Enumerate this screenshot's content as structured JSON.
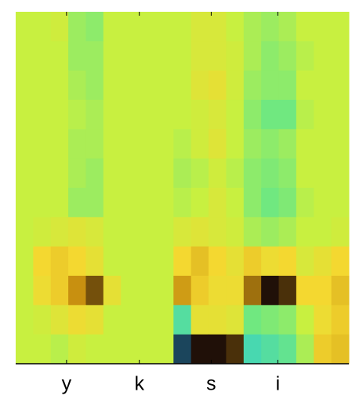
{
  "chart_data": {
    "type": "heatmap",
    "xlim": [
      0,
      19
    ],
    "xticks": [
      {
        "value": 2.9,
        "label": "y"
      },
      {
        "value": 7.05,
        "label": "k"
      },
      {
        "value": 11.15,
        "label": "s"
      },
      {
        "value": 14.95,
        "label": "i"
      }
    ],
    "colorscale": [
      [
        -1,
        "#0c1440"
      ],
      [
        -0.6,
        "#48d8b0"
      ],
      [
        -0.3,
        "#70e880"
      ],
      [
        0,
        "#c8f040"
      ],
      [
        0.3,
        "#f4d830"
      ],
      [
        0.6,
        "#c89010"
      ],
      [
        1,
        "#201008"
      ]
    ],
    "z": [
      [
        0,
        0,
        0.05,
        -0.15,
        -0.2,
        0,
        0,
        0,
        0,
        0,
        0.1,
        0.1,
        0,
        -0.1,
        -0.15,
        -0.1,
        0,
        0,
        0
      ],
      [
        0,
        0,
        0,
        -0.15,
        -0.15,
        0,
        0,
        0,
        0,
        0,
        0.1,
        0.1,
        0.05,
        -0.1,
        -0.2,
        -0.15,
        -0.05,
        0,
        0
      ],
      [
        0,
        0,
        0,
        -0.1,
        -0.15,
        0,
        0,
        0,
        0,
        0,
        0.15,
        0.2,
        0.05,
        -0.15,
        -0.2,
        -0.2,
        0,
        0,
        0
      ],
      [
        0,
        0,
        0,
        -0.05,
        -0.1,
        0,
        0,
        0,
        0,
        0,
        0.05,
        0.1,
        0,
        -0.2,
        -0.3,
        -0.3,
        -0.05,
        0,
        0
      ],
      [
        0,
        0,
        0,
        -0.1,
        -0.1,
        0,
        0,
        0,
        0,
        -0.05,
        0.05,
        0.15,
        0,
        -0.15,
        -0.2,
        -0.15,
        0,
        0,
        0
      ],
      [
        0,
        0,
        0,
        -0.1,
        -0.15,
        0,
        0,
        0,
        0,
        -0.1,
        -0.05,
        0.05,
        -0.05,
        -0.2,
        -0.25,
        -0.2,
        0,
        0,
        0
      ],
      [
        0,
        0,
        0,
        -0.15,
        -0.15,
        0,
        0,
        0,
        0,
        -0.05,
        0,
        0.1,
        0,
        -0.2,
        -0.3,
        -0.25,
        -0.05,
        0,
        0
      ],
      [
        0,
        0.05,
        0.1,
        0.15,
        0.1,
        0,
        0,
        0,
        0,
        0.1,
        0.15,
        0.1,
        0.05,
        -0.1,
        -0.15,
        -0.1,
        0,
        0,
        0.05
      ],
      [
        0,
        0.3,
        0.35,
        0.3,
        0.2,
        0,
        0,
        0,
        0,
        0.3,
        0.4,
        0.3,
        0.2,
        0.35,
        0.25,
        0.3,
        0.1,
        0.2,
        0.3
      ],
      [
        0,
        0.25,
        0.35,
        0.6,
        0.8,
        0.2,
        0,
        0,
        0,
        0.55,
        0.35,
        0.25,
        0.25,
        0.7,
        1,
        0.9,
        0.3,
        0.3,
        0.4
      ],
      [
        0,
        0.05,
        0.15,
        0.25,
        0.2,
        0,
        0,
        0,
        0,
        -0.5,
        0.2,
        0.2,
        0.15,
        -0.3,
        -0.25,
        -0.2,
        0,
        0.25,
        0.35
      ],
      [
        0,
        0,
        -0.05,
        0.05,
        0,
        0,
        0,
        0,
        0,
        -0.9,
        1,
        1,
        0.9,
        -0.6,
        -0.5,
        -0.4,
        -0.1,
        0.35,
        0.4
      ]
    ]
  }
}
